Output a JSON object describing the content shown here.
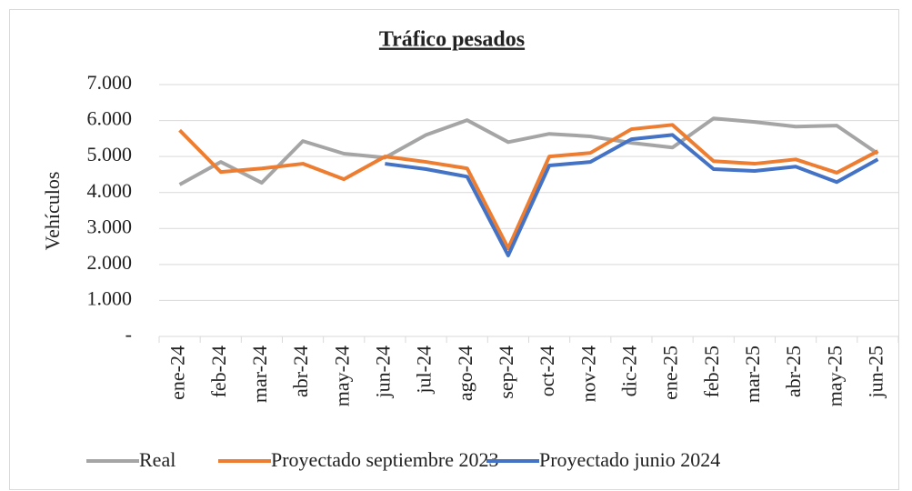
{
  "chart_data": {
    "type": "line",
    "title": "Tráfico pesados",
    "y_label": "Vehículos",
    "categories": [
      "ene-24",
      "feb-24",
      "mar-24",
      "abr-24",
      "may-24",
      "jun-24",
      "jul-24",
      "ago-24",
      "sep-24",
      "oct-24",
      "nov-24",
      "dic-24",
      "ene-25",
      "feb-25",
      "mar-25",
      "abr-25",
      "may-25",
      "jun-25"
    ],
    "series": [
      {
        "name": "Real",
        "color": "#a5a5a5",
        "values": [
          4220,
          4850,
          4270,
          5430,
          5080,
          4970,
          5600,
          6010,
          5400,
          5630,
          5560,
          5380,
          5250,
          6060,
          5960,
          5830,
          5860,
          5080
        ]
      },
      {
        "name": "Proyectado septiembre 2023",
        "color": "#ed7d31",
        "values": [
          5730,
          4570,
          4670,
          4800,
          4370,
          5000,
          4850,
          4670,
          2450,
          5000,
          5100,
          5760,
          5880,
          4870,
          4800,
          4920,
          4550,
          5150
        ]
      },
      {
        "name": "Proyectado junio 2024",
        "color": "#4472c4",
        "values": [
          null,
          null,
          null,
          null,
          null,
          4800,
          4650,
          4440,
          2250,
          4750,
          4850,
          5480,
          5600,
          4650,
          4600,
          4720,
          4290,
          4920
        ]
      }
    ],
    "ylim": [
      0,
      7000
    ],
    "yticks": [
      {
        "value": 0,
        "label": "-"
      },
      {
        "value": 1000,
        "label": "1.000"
      },
      {
        "value": 2000,
        "label": "2.000"
      },
      {
        "value": 3000,
        "label": "3.000"
      },
      {
        "value": 4000,
        "label": "4.000"
      },
      {
        "value": 5000,
        "label": "5.000"
      },
      {
        "value": 6000,
        "label": "6.000"
      },
      {
        "value": 7000,
        "label": "7.000"
      }
    ],
    "grid": true,
    "legend": "bottom"
  }
}
